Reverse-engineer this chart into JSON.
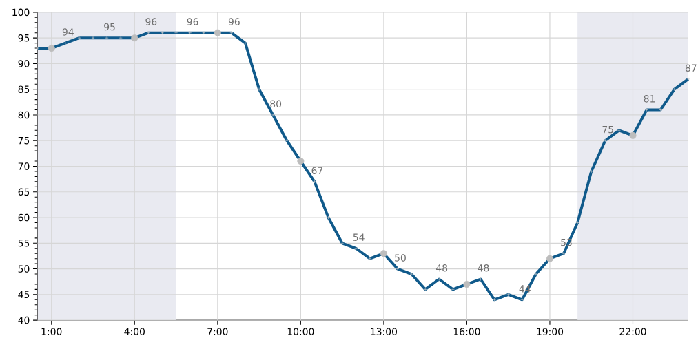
{
  "chart_data": {
    "type": "line",
    "xlim": [
      0.5,
      24
    ],
    "ylim": [
      40,
      100
    ],
    "xticks": [
      {
        "value": 1,
        "label": "1:00"
      },
      {
        "value": 4,
        "label": "4:00"
      },
      {
        "value": 7,
        "label": "7:00"
      },
      {
        "value": 10,
        "label": "10:00"
      },
      {
        "value": 13,
        "label": "13:00"
      },
      {
        "value": 16,
        "label": "16:00"
      },
      {
        "value": 19,
        "label": "19:00"
      },
      {
        "value": 22,
        "label": "22:00"
      }
    ],
    "yticks": [
      40,
      45,
      50,
      55,
      60,
      65,
      70,
      75,
      80,
      85,
      90,
      95,
      100
    ],
    "grid": true,
    "bands": [
      {
        "axis": "x",
        "from": 0.5,
        "to": 5.5,
        "color": "#e9eaf1"
      },
      {
        "axis": "x",
        "from": 20,
        "to": 24,
        "color": "#e9eaf1"
      }
    ],
    "series": [
      {
        "color": "#105a8b",
        "marker": "cross",
        "x": [
          0.5,
          1,
          1.5,
          2,
          2.5,
          3,
          3.5,
          4,
          4.5,
          5,
          5.5,
          6,
          6.5,
          7,
          7.5,
          8,
          8.5,
          9,
          9.5,
          10,
          10.5,
          11,
          11.5,
          12,
          12.5,
          13,
          13.5,
          14,
          14.5,
          15,
          15.5,
          16,
          16.5,
          17,
          17.5,
          18,
          18.5,
          19,
          19.5,
          20,
          20.5,
          21,
          21.5,
          22,
          22.5,
          23,
          23.5,
          24
        ],
        "values": [
          93,
          93,
          94,
          95,
          95,
          95,
          95,
          95,
          96,
          96,
          96,
          96,
          96,
          96,
          96,
          94,
          85,
          80,
          75,
          71,
          67,
          60,
          55,
          54,
          52,
          53,
          50,
          49,
          46,
          48,
          46,
          47,
          48,
          44,
          45,
          44,
          49,
          52,
          53,
          59,
          69,
          75,
          77,
          76,
          81,
          81,
          85,
          87
        ],
        "value_labels": [
          null,
          null,
          "94",
          null,
          null,
          "95",
          null,
          null,
          "96",
          null,
          null,
          "96",
          null,
          null,
          "96",
          null,
          null,
          "80",
          null,
          null,
          "67",
          null,
          null,
          "54",
          null,
          null,
          "50",
          null,
          null,
          "48",
          null,
          null,
          "48",
          null,
          null,
          "44",
          null,
          null,
          "53",
          null,
          null,
          "75",
          null,
          null,
          "81",
          null,
          null,
          "87"
        ]
      },
      {
        "type": "scatter",
        "color": "#bdbdbd",
        "marker": "circle",
        "x": [
          1,
          4,
          7,
          10,
          13,
          16,
          19,
          22
        ],
        "values": [
          93,
          95,
          96,
          71,
          53,
          47,
          52,
          76
        ]
      }
    ]
  }
}
